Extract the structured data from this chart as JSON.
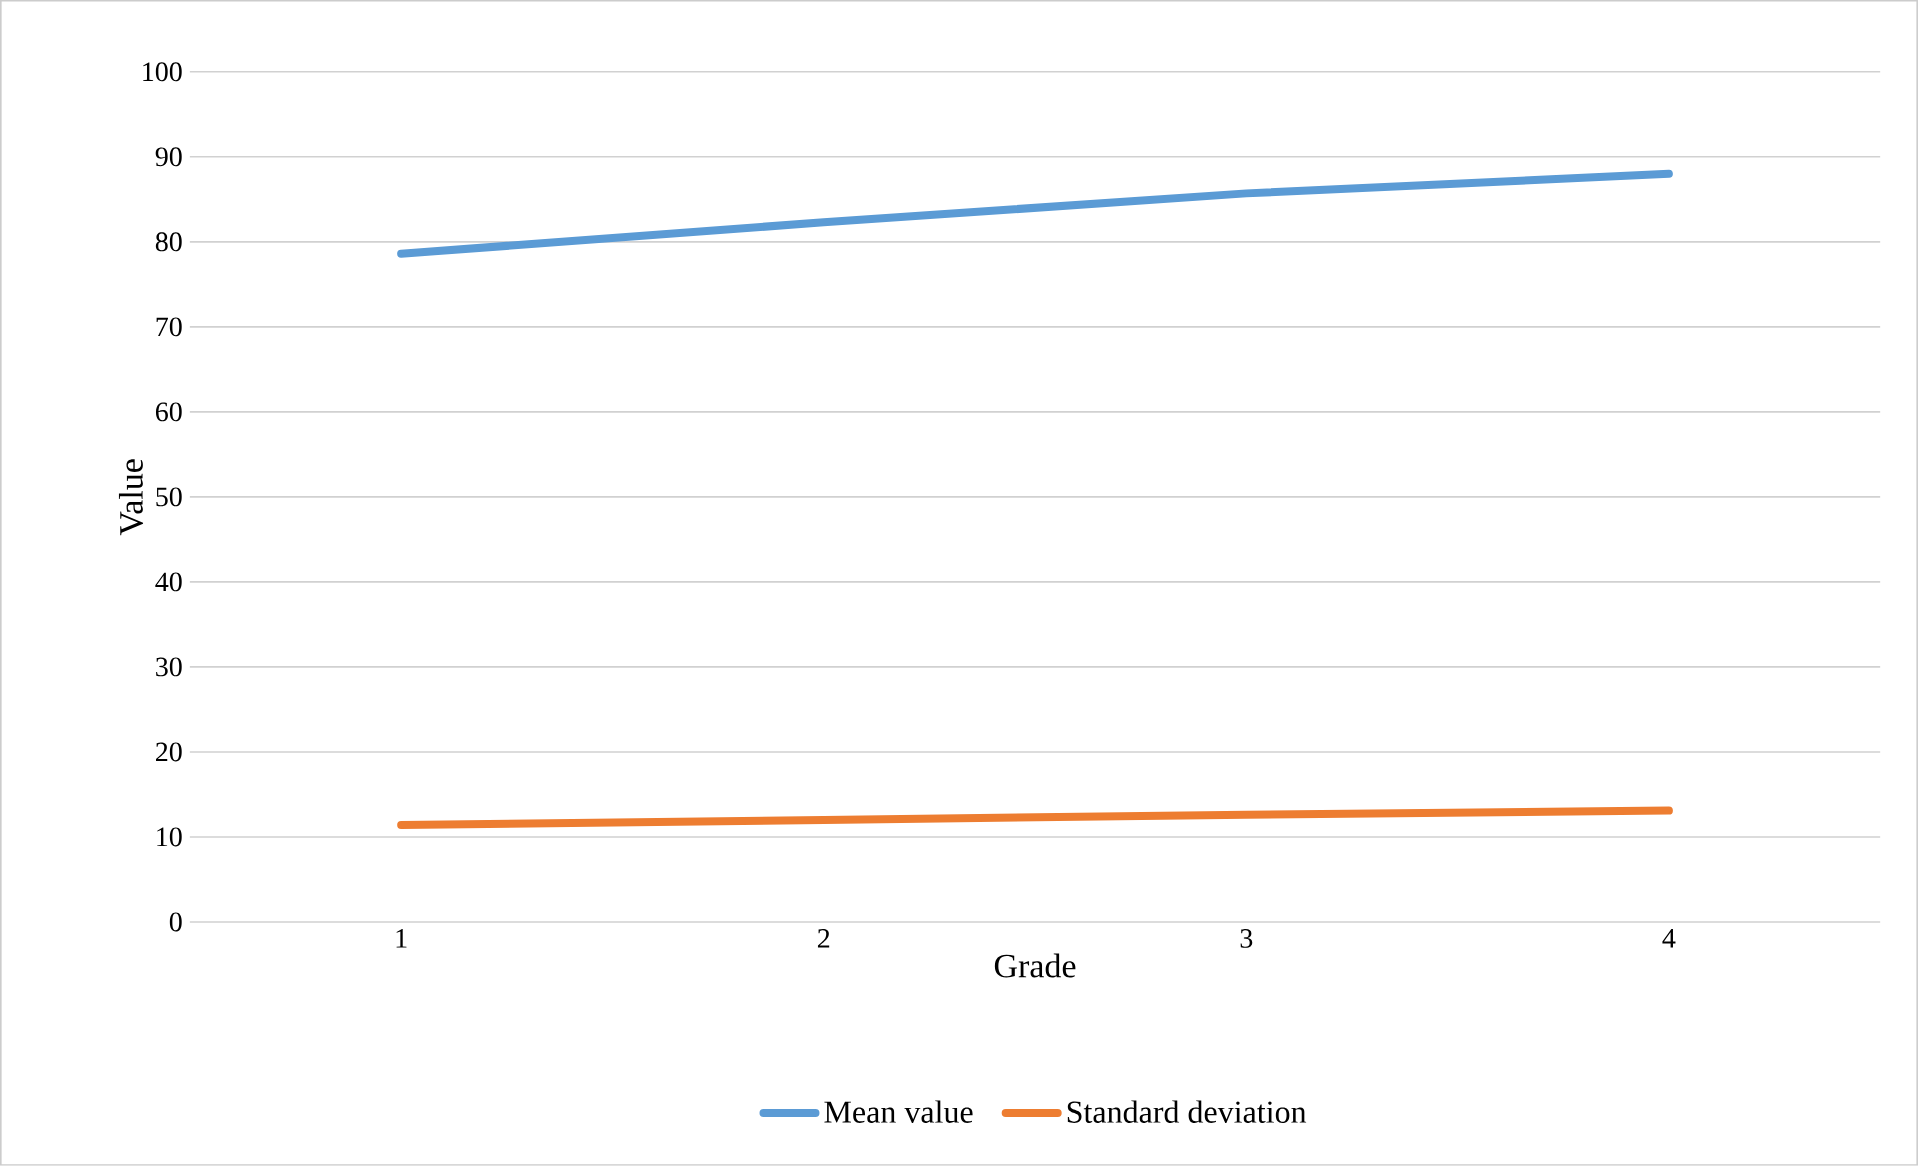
{
  "chart_data": {
    "type": "line",
    "xlabel": "Grade",
    "ylabel": "Value",
    "categories": [
      "1",
      "2",
      "3",
      "4"
    ],
    "series": [
      {
        "name": "Mean value",
        "color": "#5b9bd5",
        "values": [
          78.6,
          82.3,
          85.7,
          88.0
        ]
      },
      {
        "name": "Standard deviation",
        "color": "#ed7d31",
        "values": [
          11.4,
          12.0,
          12.6,
          13.1
        ]
      }
    ],
    "ylim": [
      0,
      100
    ],
    "yticks": [
      0,
      10,
      20,
      30,
      40,
      50,
      60,
      70,
      80,
      90,
      100
    ],
    "grid": "y",
    "legend": "bottom",
    "marker": "none",
    "line_style": "solid"
  }
}
